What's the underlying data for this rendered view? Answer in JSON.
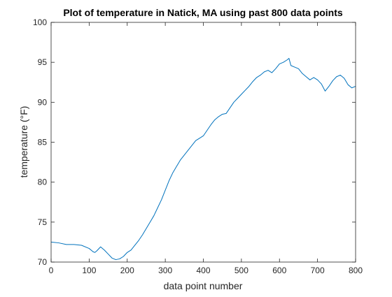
{
  "chart_data": {
    "type": "line",
    "title": "Plot of temperature in Natick, MA using past 800 data points",
    "xlabel": "data point number",
    "ylabel": "temperature (°F)",
    "xlim": [
      0,
      800
    ],
    "ylim": [
      70,
      100
    ],
    "xticks": [
      0,
      100,
      200,
      300,
      400,
      500,
      600,
      700,
      800
    ],
    "yticks": [
      70,
      75,
      80,
      85,
      90,
      95,
      100
    ],
    "grid": false,
    "legend": "none",
    "line_color": "#0072BD",
    "series": [
      {
        "x": [
          0,
          20,
          40,
          60,
          80,
          100,
          110,
          115,
          120,
          130,
          140,
          150,
          160,
          170,
          180,
          190,
          200,
          210,
          220,
          230,
          240,
          250,
          260,
          270,
          280,
          290,
          300,
          310,
          320,
          330,
          340,
          350,
          360,
          370,
          380,
          390,
          400,
          410,
          420,
          430,
          440,
          450,
          460,
          470,
          480,
          490,
          500,
          510,
          520,
          530,
          540,
          550,
          560,
          570,
          580,
          590,
          600,
          610,
          620,
          625,
          630,
          640,
          650,
          660,
          670,
          680,
          690,
          700,
          710,
          720,
          730,
          740,
          750,
          760,
          770,
          780,
          790,
          800
        ],
        "y": [
          72.5,
          72.4,
          72.2,
          72.2,
          72.1,
          71.7,
          71.3,
          71.2,
          71.4,
          71.9,
          71.5,
          71.0,
          70.5,
          70.3,
          70.4,
          70.7,
          71.2,
          71.5,
          72.1,
          72.7,
          73.4,
          74.2,
          75.0,
          75.8,
          76.8,
          77.8,
          79.0,
          80.2,
          81.2,
          82.0,
          82.8,
          83.4,
          84.0,
          84.6,
          85.2,
          85.5,
          85.8,
          86.5,
          87.2,
          87.8,
          88.2,
          88.5,
          88.6,
          89.3,
          90.0,
          90.5,
          91.0,
          91.5,
          92.0,
          92.6,
          93.1,
          93.4,
          93.8,
          94.0,
          93.7,
          94.2,
          94.8,
          95.0,
          95.3,
          95.5,
          94.6,
          94.4,
          94.2,
          93.6,
          93.2,
          92.8,
          93.1,
          92.8,
          92.3,
          91.4,
          92.0,
          92.7,
          93.2,
          93.4,
          93.0,
          92.2,
          91.8,
          92.0
        ]
      }
    ]
  }
}
